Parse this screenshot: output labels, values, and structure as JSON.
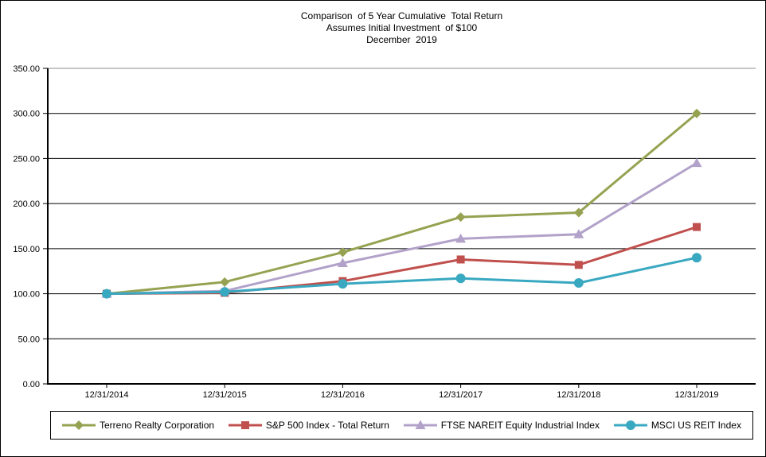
{
  "title": {
    "line1": "Comparison  of 5 Year Cumulative  Total Return",
    "line2": "Assumes Initial Investment  of $100",
    "line3": "December  2019"
  },
  "chart_data": {
    "type": "line",
    "title": "Comparison of 5 Year Cumulative Total Return, Assumes Initial Investment of $100, December 2019",
    "xlabel": "",
    "ylabel": "",
    "categories": [
      "12/31/2014",
      "12/31/2015",
      "12/31/2016",
      "12/31/2017",
      "12/31/2018",
      "12/31/2019"
    ],
    "series": [
      {
        "name": "Terreno Realty Corporation",
        "marker": "diamond",
        "color": "#96A251",
        "values": [
          100,
          113,
          146,
          185,
          190,
          300
        ]
      },
      {
        "name": "S&P 500 Index - Total Return",
        "marker": "square",
        "color": "#C0504D",
        "values": [
          100,
          101,
          114,
          138,
          132,
          174
        ]
      },
      {
        "name": "FTSE NAREIT Equity Industrial Index",
        "marker": "triangle",
        "color": "#B2A2C9",
        "values": [
          100,
          103,
          134,
          161,
          166,
          245
        ]
      },
      {
        "name": "MSCI US REIT Index",
        "marker": "circle",
        "color": "#39A8C1",
        "values": [
          100,
          102,
          111,
          117,
          112,
          140
        ]
      }
    ],
    "ylim": [
      0,
      350
    ],
    "y_tick_step": 50,
    "y_ticks": [
      "0.00",
      "50.00",
      "100.00",
      "150.00",
      "200.00",
      "250.00",
      "300.00",
      "350.00"
    ],
    "grid": true,
    "legend_position": "bottom"
  },
  "colors": {
    "background": "#FFFFFF",
    "border": "#000000",
    "axis": "#000000",
    "gridline": "#000000",
    "top_gridline": "#8C8C8C",
    "text": "#000000"
  }
}
